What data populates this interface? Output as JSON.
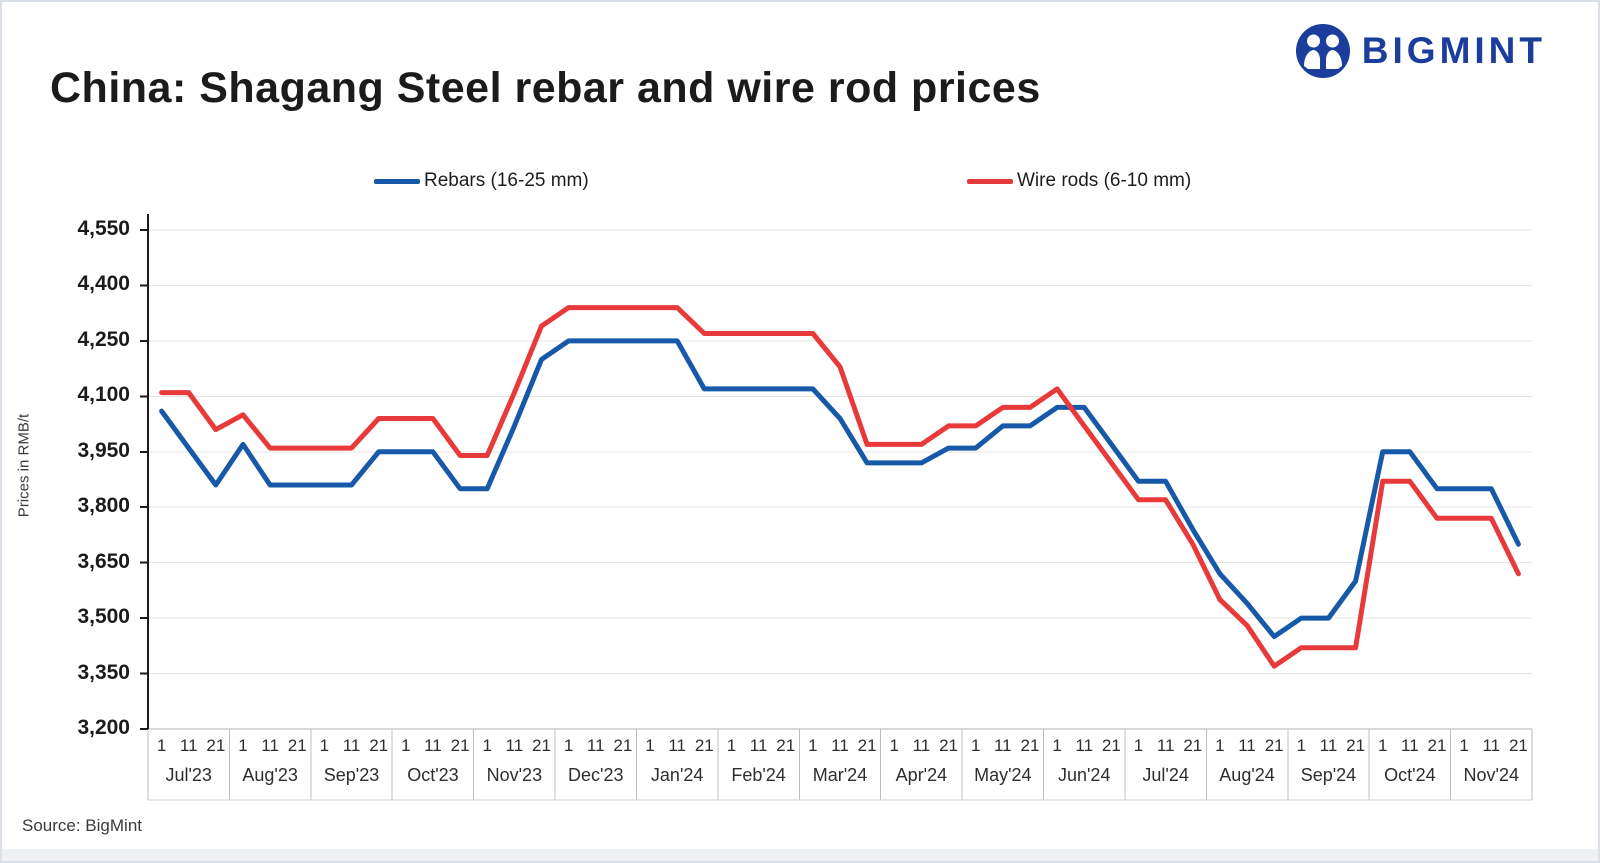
{
  "header": {
    "title": "China: Shagang Steel rebar and wire rod prices",
    "logo_text": "BIGMINT"
  },
  "footer": {
    "source": "Source: BigMint"
  },
  "chart_data": {
    "type": "line",
    "title": "China: Shagang Steel rebar and wire rod prices",
    "ylabel": "Prices in RMB/t",
    "ylim": [
      3200,
      4550
    ],
    "grid": "horizontal",
    "legend_position": "top",
    "y_ticks": [
      "3,200",
      "3,350",
      "3,500",
      "3,650",
      "3,800",
      "3,950",
      "4,100",
      "4,250",
      "4,400",
      "4,550"
    ],
    "y_tick_values": [
      3200,
      3350,
      3500,
      3650,
      3800,
      3950,
      4100,
      4250,
      4400,
      4550
    ],
    "day_ticks": [
      "1",
      "11",
      "21"
    ],
    "months": [
      {
        "label": "Jul'23"
      },
      {
        "label": "Aug'23"
      },
      {
        "label": "Sep'23"
      },
      {
        "label": "Oct'23"
      },
      {
        "label": "Nov'23"
      },
      {
        "label": "Dec'23"
      },
      {
        "label": "Jan'24"
      },
      {
        "label": "Feb'24"
      },
      {
        "label": "Mar'24"
      },
      {
        "label": "Apr'24"
      },
      {
        "label": "May'24"
      },
      {
        "label": "Jun'24"
      },
      {
        "label": "Jul'24"
      },
      {
        "label": "Aug'24"
      },
      {
        "label": "Sep'24"
      },
      {
        "label": "Oct'24"
      },
      {
        "label": "Nov'24"
      }
    ],
    "series": [
      {
        "name": "Rebars (16-25 mm)",
        "color": "#1659a8",
        "values": [
          4060,
          3960,
          3860,
          3970,
          3860,
          3860,
          3860,
          3860,
          3950,
          3950,
          3950,
          3850,
          3850,
          4020,
          4200,
          4250,
          4250,
          4250,
          4250,
          4250,
          4120,
          4120,
          4120,
          4120,
          4120,
          4040,
          3920,
          3920,
          3920,
          3960,
          3960,
          4020,
          4020,
          4070,
          4070,
          3970,
          3870,
          3870,
          3740,
          3620,
          3540,
          3450,
          3500,
          3500,
          3600,
          3950,
          3950,
          3850,
          3850,
          3850,
          3700
        ]
      },
      {
        "name": "Wire rods (6-10 mm)",
        "color": "#e83a3a",
        "values": [
          4110,
          4110,
          4010,
          4050,
          3960,
          3960,
          3960,
          3960,
          4040,
          4040,
          4040,
          3940,
          3940,
          4110,
          4290,
          4340,
          4340,
          4340,
          4340,
          4340,
          4270,
          4270,
          4270,
          4270,
          4270,
          4180,
          3970,
          3970,
          3970,
          4020,
          4020,
          4070,
          4070,
          4120,
          4020,
          3920,
          3820,
          3820,
          3700,
          3550,
          3480,
          3370,
          3420,
          3420,
          3420,
          3870,
          3870,
          3770,
          3770,
          3770,
          3620
        ]
      }
    ]
  }
}
